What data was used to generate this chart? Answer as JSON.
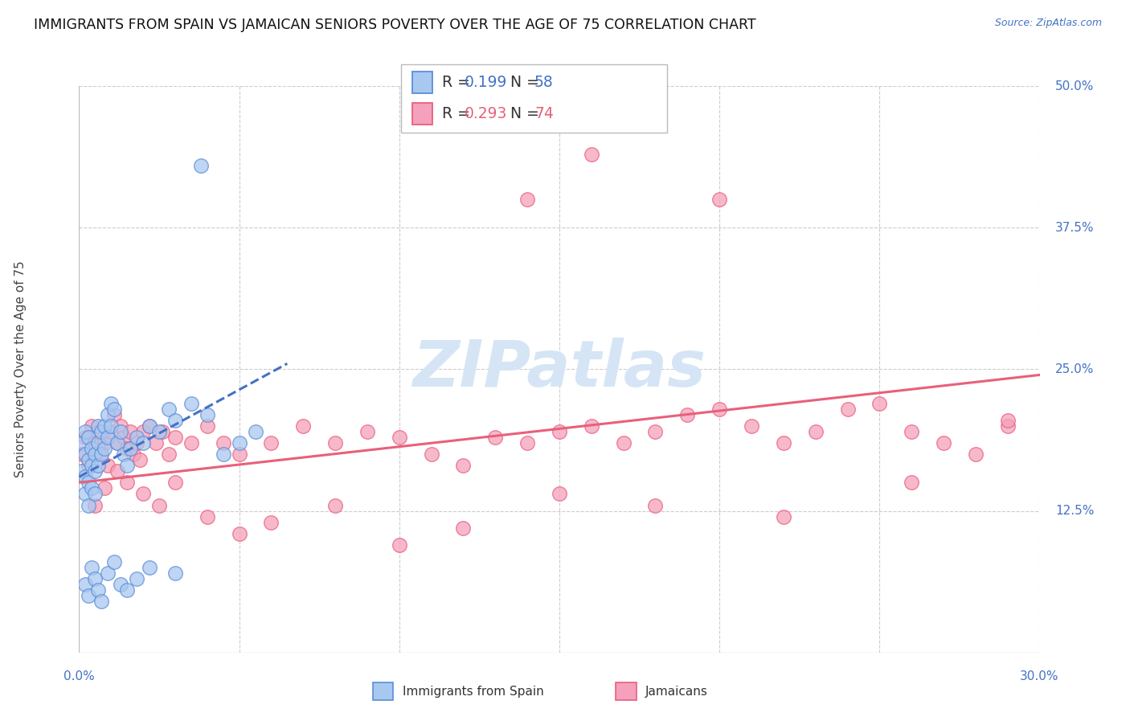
{
  "title": "IMMIGRANTS FROM SPAIN VS JAMAICAN SENIORS POVERTY OVER THE AGE OF 75 CORRELATION CHART",
  "source": "Source: ZipAtlas.com",
  "ylabel": "Seniors Poverty Over the Age of 75",
  "x_min": 0.0,
  "x_max": 0.3,
  "y_min": 0.0,
  "y_max": 0.5,
  "y_tick_labels_right": [
    "50.0%",
    "37.5%",
    "25.0%",
    "12.5%"
  ],
  "y_tick_vals_right": [
    0.5,
    0.375,
    0.25,
    0.125
  ],
  "color_spain": "#A8C8F0",
  "color_jamaica": "#F5A0BC",
  "color_spain_edge": "#5B8DD9",
  "color_jamaica_edge": "#E8607A",
  "color_spain_line": "#4472C4",
  "color_jamaica_line": "#E8607A",
  "color_axis_labels": "#4472C4",
  "color_grid": "#CCCCCC",
  "watermark_color": "#D5E5F5",
  "spain_x": [
    0.001,
    0.001,
    0.002,
    0.002,
    0.002,
    0.002,
    0.003,
    0.003,
    0.003,
    0.003,
    0.004,
    0.004,
    0.004,
    0.005,
    0.005,
    0.005,
    0.006,
    0.006,
    0.006,
    0.007,
    0.007,
    0.008,
    0.008,
    0.009,
    0.009,
    0.01,
    0.01,
    0.011,
    0.012,
    0.013,
    0.014,
    0.015,
    0.016,
    0.018,
    0.02,
    0.022,
    0.025,
    0.028,
    0.03,
    0.035,
    0.038,
    0.04,
    0.045,
    0.05,
    0.055,
    0.002,
    0.003,
    0.004,
    0.005,
    0.006,
    0.007,
    0.009,
    0.011,
    0.013,
    0.015,
    0.018,
    0.022,
    0.03
  ],
  "spain_y": [
    0.185,
    0.16,
    0.195,
    0.175,
    0.155,
    0.14,
    0.19,
    0.17,
    0.15,
    0.13,
    0.18,
    0.165,
    0.145,
    0.175,
    0.16,
    0.14,
    0.2,
    0.185,
    0.165,
    0.195,
    0.175,
    0.2,
    0.18,
    0.21,
    0.19,
    0.22,
    0.2,
    0.215,
    0.185,
    0.195,
    0.175,
    0.165,
    0.18,
    0.19,
    0.185,
    0.2,
    0.195,
    0.215,
    0.205,
    0.22,
    0.43,
    0.21,
    0.175,
    0.185,
    0.195,
    0.06,
    0.05,
    0.075,
    0.065,
    0.055,
    0.045,
    0.07,
    0.08,
    0.06,
    0.055,
    0.065,
    0.075,
    0.07
  ],
  "jamaica_x": [
    0.001,
    0.002,
    0.003,
    0.004,
    0.005,
    0.006,
    0.007,
    0.008,
    0.009,
    0.01,
    0.011,
    0.012,
    0.013,
    0.014,
    0.015,
    0.016,
    0.017,
    0.018,
    0.019,
    0.02,
    0.022,
    0.024,
    0.026,
    0.028,
    0.03,
    0.035,
    0.04,
    0.045,
    0.05,
    0.06,
    0.07,
    0.08,
    0.09,
    0.1,
    0.11,
    0.12,
    0.13,
    0.14,
    0.15,
    0.16,
    0.17,
    0.18,
    0.19,
    0.2,
    0.21,
    0.22,
    0.23,
    0.24,
    0.25,
    0.26,
    0.27,
    0.28,
    0.29,
    0.005,
    0.008,
    0.012,
    0.015,
    0.02,
    0.025,
    0.03,
    0.04,
    0.05,
    0.06,
    0.08,
    0.1,
    0.12,
    0.15,
    0.18,
    0.22,
    0.26,
    0.29,
    0.14,
    0.16,
    0.2
  ],
  "jamaica_y": [
    0.175,
    0.19,
    0.165,
    0.2,
    0.185,
    0.195,
    0.175,
    0.185,
    0.165,
    0.195,
    0.21,
    0.185,
    0.2,
    0.19,
    0.18,
    0.195,
    0.175,
    0.185,
    0.17,
    0.195,
    0.2,
    0.185,
    0.195,
    0.175,
    0.19,
    0.185,
    0.2,
    0.185,
    0.175,
    0.185,
    0.2,
    0.185,
    0.195,
    0.19,
    0.175,
    0.165,
    0.19,
    0.185,
    0.195,
    0.2,
    0.185,
    0.195,
    0.21,
    0.215,
    0.2,
    0.185,
    0.195,
    0.215,
    0.22,
    0.195,
    0.185,
    0.175,
    0.2,
    0.13,
    0.145,
    0.16,
    0.15,
    0.14,
    0.13,
    0.15,
    0.12,
    0.105,
    0.115,
    0.13,
    0.095,
    0.11,
    0.14,
    0.13,
    0.12,
    0.15,
    0.205,
    0.4,
    0.44,
    0.4
  ],
  "spain_trend_x": [
    0.0,
    0.065
  ],
  "spain_trend_y": [
    0.155,
    0.255
  ],
  "jamaica_trend_x": [
    0.0,
    0.3
  ],
  "jamaica_trend_y": [
    0.15,
    0.245
  ],
  "background_color": "#FFFFFF",
  "title_fontsize": 12.5,
  "axis_label_fontsize": 11,
  "tick_fontsize": 11,
  "legend_r1": "R = ",
  "legend_v1": "0.199",
  "legend_n1_label": "  N = ",
  "legend_n1_val": "58",
  "legend_r2": "R = ",
  "legend_v2": "0.293",
  "legend_n2_label": "  N = ",
  "legend_n2_val": "74"
}
